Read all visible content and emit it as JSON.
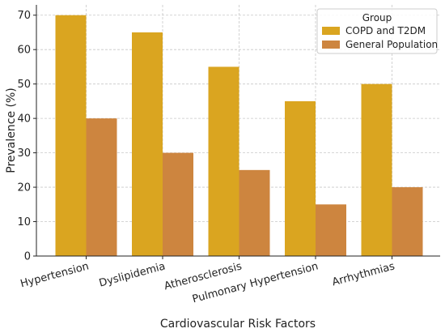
{
  "chart_data": {
    "type": "bar",
    "title": "",
    "xlabel": "Cardiovascular Risk Factors",
    "ylabel": "Prevalence (%)",
    "categories": [
      "Hypertension",
      "Dyslipidemia",
      "Atherosclerosis",
      "Pulmonary Hypertension",
      "Arrhythmias"
    ],
    "series": [
      {
        "name": "COPD and T2DM",
        "values": [
          70,
          65,
          55,
          45,
          50
        ],
        "color": "#DAA520"
      },
      {
        "name": "General Population",
        "values": [
          40,
          30,
          25,
          15,
          20
        ],
        "color": "#CD853F"
      }
    ],
    "ylim": [
      0,
      73
    ],
    "yticks": [
      0,
      10,
      20,
      30,
      40,
      50,
      60,
      70
    ],
    "grid": true,
    "legend": {
      "title": "Group",
      "placement": "top-right"
    }
  }
}
